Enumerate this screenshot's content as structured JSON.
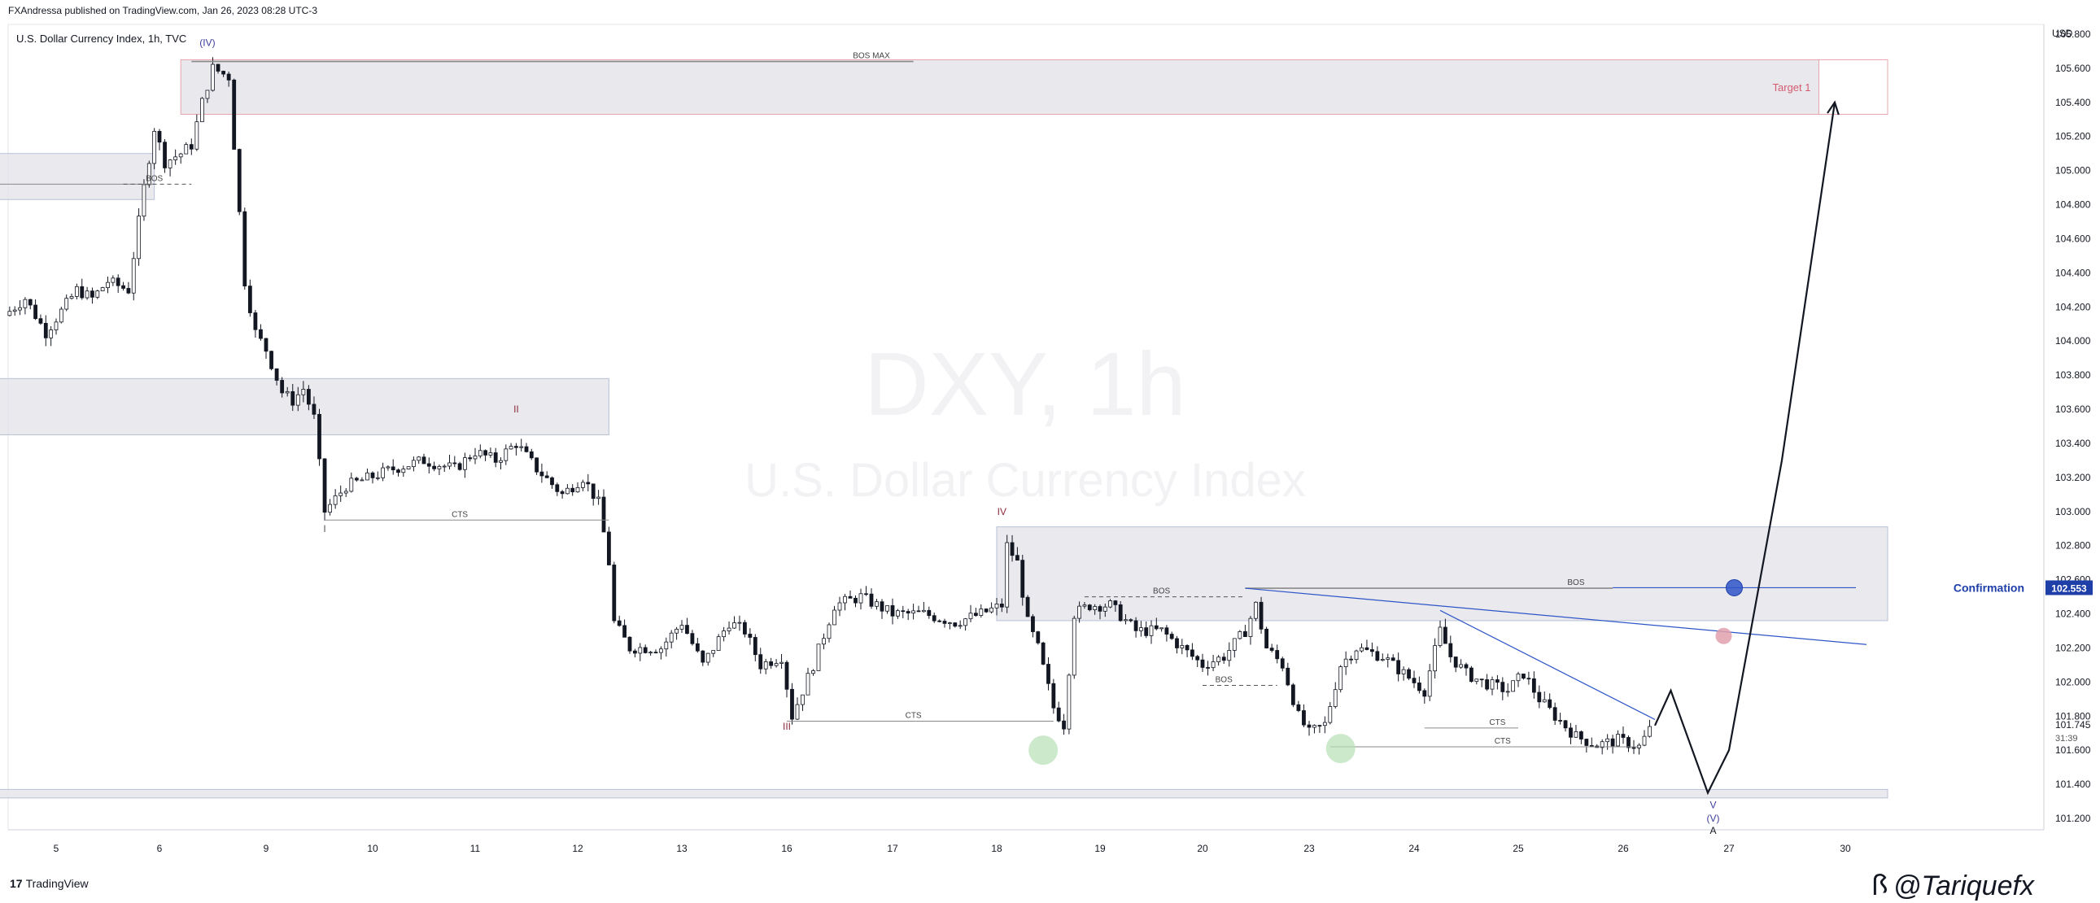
{
  "header": {
    "publisher": "FXAndressa published on TradingView.com, Jan 26, 2023 08:28 UTC-3",
    "instrument": "U.S. Dollar Currency Index, 1h, TVC"
  },
  "watermark": {
    "title": "DXY, 1h",
    "subtitle": "U.S. Dollar Currency Index"
  },
  "footer": {
    "tv_logo_mark": "17",
    "tv_logo_text": "TradingView",
    "handle_glyph": "ꟗ",
    "handle": "@Tariquefx"
  },
  "price_label": {
    "value": "102.553",
    "color": "#1e3fa8"
  },
  "last_price": {
    "value": "101.745",
    "countdown": "31:39"
  },
  "colors": {
    "candle_up": "#ffffff",
    "candle_down": "#131722",
    "zone_fill": "#e4e4ea",
    "target_border": "#e8a4ae",
    "confirm_line": "#2e55c7",
    "axis_text": "#131722"
  },
  "chart_data": {
    "type": "candlestick",
    "currency": "USD",
    "ylim": [
      101.1,
      105.95
    ],
    "y_ticks": [
      "105.800",
      "105.600",
      "105.400",
      "105.200",
      "105.000",
      "104.800",
      "104.600",
      "104.400",
      "104.200",
      "104.000",
      "103.800",
      "103.600",
      "103.400",
      "103.200",
      "103.000",
      "102.800",
      "102.600",
      "102.400",
      "102.200",
      "102.000",
      "101.800",
      "101.600",
      "101.400",
      "101.200"
    ],
    "x_ticks": [
      "5",
      "6",
      "9",
      "10",
      "11",
      "12",
      "13",
      "16",
      "17",
      "18",
      "19",
      "20",
      "23",
      "24",
      "25",
      "26",
      "27",
      "30"
    ],
    "x_tick_index": [
      0,
      1,
      2,
      3,
      4,
      5,
      6,
      7,
      8,
      9,
      10,
      11,
      12,
      13,
      14,
      15,
      16,
      17.1
    ],
    "path_anchors": [
      [
        -0.5,
        104.15
      ],
      [
        -0.3,
        104.25
      ],
      [
        -0.1,
        104.05
      ],
      [
        0.2,
        104.3
      ],
      [
        0.35,
        104.25
      ],
      [
        0.5,
        104.35
      ],
      [
        0.7,
        104.3
      ],
      [
        0.85,
        104.9
      ],
      [
        0.95,
        105.25
      ],
      [
        1.05,
        105.05
      ],
      [
        1.2,
        105.1
      ],
      [
        1.3,
        105.15
      ],
      [
        1.4,
        105.4
      ],
      [
        1.5,
        105.6
      ],
      [
        1.65,
        105.55
      ],
      [
        1.8,
        104.35
      ],
      [
        1.9,
        104.05
      ],
      [
        2.0,
        103.95
      ],
      [
        2.15,
        103.7
      ],
      [
        2.25,
        103.65
      ],
      [
        2.35,
        103.72
      ],
      [
        2.45,
        103.55
      ],
      [
        2.55,
        103.0
      ],
      [
        2.75,
        103.15
      ],
      [
        3.2,
        103.25
      ],
      [
        3.5,
        103.3
      ],
      [
        3.8,
        103.25
      ],
      [
        4.0,
        103.35
      ],
      [
        4.2,
        103.3
      ],
      [
        4.4,
        103.4
      ],
      [
        4.6,
        103.25
      ],
      [
        4.85,
        103.1
      ],
      [
        5.05,
        103.2
      ],
      [
        5.2,
        103.05
      ],
      [
        5.3,
        102.7
      ],
      [
        5.35,
        102.35
      ],
      [
        5.5,
        102.2
      ],
      [
        5.8,
        102.2
      ],
      [
        6.0,
        102.35
      ],
      [
        6.2,
        102.1
      ],
      [
        6.45,
        102.35
      ],
      [
        6.6,
        102.3
      ],
      [
        6.75,
        102.1
      ],
      [
        6.95,
        102.15
      ],
      [
        7.05,
        101.8
      ],
      [
        7.25,
        102.1
      ],
      [
        7.45,
        102.45
      ],
      [
        7.7,
        102.5
      ],
      [
        8.0,
        102.4
      ],
      [
        8.3,
        102.4
      ],
      [
        8.6,
        102.35
      ],
      [
        8.85,
        102.4
      ],
      [
        9.05,
        102.45
      ],
      [
        9.1,
        102.8
      ],
      [
        9.2,
        102.7
      ],
      [
        9.3,
        102.35
      ],
      [
        9.4,
        102.2
      ],
      [
        9.55,
        101.85
      ],
      [
        9.65,
        101.75
      ],
      [
        9.75,
        102.4
      ],
      [
        9.9,
        102.45
      ],
      [
        10.1,
        102.45
      ],
      [
        10.35,
        102.3
      ],
      [
        10.6,
        102.3
      ],
      [
        10.8,
        102.2
      ],
      [
        11.0,
        102.1
      ],
      [
        11.2,
        102.15
      ],
      [
        11.4,
        102.3
      ],
      [
        11.5,
        102.45
      ],
      [
        11.6,
        102.2
      ],
      [
        11.75,
        102.1
      ],
      [
        11.9,
        101.8
      ],
      [
        12.0,
        101.7
      ],
      [
        12.15,
        101.75
      ],
      [
        12.3,
        102.1
      ],
      [
        12.45,
        102.2
      ],
      [
        12.7,
        102.15
      ],
      [
        12.9,
        102.05
      ],
      [
        13.1,
        101.95
      ],
      [
        13.25,
        102.3
      ],
      [
        13.35,
        102.15
      ],
      [
        13.5,
        102.05
      ],
      [
        13.65,
        102.0
      ],
      [
        13.9,
        101.95
      ],
      [
        14.05,
        102.05
      ],
      [
        14.2,
        101.9
      ],
      [
        14.35,
        101.8
      ],
      [
        14.55,
        101.68
      ],
      [
        14.75,
        101.63
      ],
      [
        14.95,
        101.66
      ],
      [
        15.15,
        101.62
      ],
      [
        15.25,
        101.72
      ],
      [
        15.3,
        101.77
      ]
    ],
    "projection": [
      [
        15.3,
        101.745
      ],
      [
        15.45,
        101.95
      ],
      [
        15.8,
        101.35
      ],
      [
        16.0,
        101.6
      ],
      [
        16.5,
        103.3
      ],
      [
        17.0,
        105.4
      ]
    ],
    "zones": [
      {
        "x0": 1.2,
        "x1": 16.85,
        "y0": 105.33,
        "y1": 105.65,
        "style": "target",
        "label": "Target 1"
      },
      {
        "x0": -0.65,
        "x1": 0.95,
        "y0": 104.83,
        "y1": 105.1,
        "style": "zone"
      },
      {
        "x0": -0.65,
        "x1": 5.3,
        "y0": 103.45,
        "y1": 103.78,
        "style": "zone"
      },
      {
        "x0": 9.0,
        "x1": 17.5,
        "y0": 102.36,
        "y1": 102.91,
        "style": "zone"
      },
      {
        "x0": -0.65,
        "x1": 17.5,
        "y0": 101.32,
        "y1": 101.37,
        "style": "zone"
      }
    ],
    "levels": [
      {
        "x0": 1.3,
        "x1": 8.2,
        "y": 105.64,
        "label": "BOS MAX",
        "label_x": 7.8,
        "dashed": false
      },
      {
        "x0": -0.65,
        "x1": 0.95,
        "y": 104.92,
        "label": "",
        "label_x": 0,
        "dashed": false
      },
      {
        "x0": 0.65,
        "x1": 1.3,
        "y": 104.92,
        "label": "BOS",
        "label_x": 0.95,
        "dashed": true
      },
      {
        "x0": 2.55,
        "x1": 5.3,
        "y": 102.95,
        "label": "CTS",
        "label_x": 3.85,
        "dashed": false
      },
      {
        "x0": 9.85,
        "x1": 11.4,
        "y": 102.5,
        "label": "BOS",
        "label_x": 10.6,
        "dashed": true
      },
      {
        "x0": 11.0,
        "x1": 11.7,
        "y": 101.98,
        "label": "BOS",
        "label_x": 11.2,
        "dashed": true
      },
      {
        "x0": 7.0,
        "x1": 9.55,
        "y": 101.77,
        "label": "CTS",
        "label_x": 8.2,
        "dashed": false
      },
      {
        "x0": 13.1,
        "x1": 14.0,
        "y": 101.73,
        "label": "CTS",
        "label_x": 13.8,
        "dashed": false
      },
      {
        "x0": 12.2,
        "x1": 15.15,
        "y": 101.62,
        "label": "CTS",
        "label_x": 13.85,
        "dashed": false
      },
      {
        "x0": 11.4,
        "x1": 14.9,
        "y": 102.55,
        "label": "BOS",
        "label_x": 14.55,
        "dashed": false
      }
    ],
    "trendlines": [
      {
        "x0": 11.4,
        "y0": 102.55,
        "x1": 17.3,
        "y1": 102.22
      },
      {
        "x0": 13.25,
        "y0": 102.42,
        "x1": 15.3,
        "y1": 101.78
      }
    ],
    "confirmation": {
      "x0": 14.9,
      "x1": 17.2,
      "y": 102.553,
      "label": "Confirmation"
    },
    "markers": [
      {
        "x": 16.05,
        "y": 102.553,
        "color": "#2e55c7"
      },
      {
        "x": 15.95,
        "y": 102.27,
        "color": "#e0a0ab"
      },
      {
        "x": 9.45,
        "y": 101.6,
        "color": "#b8e0b6"
      },
      {
        "x": 12.3,
        "y": 101.61,
        "color": "#b8e0b6"
      }
    ],
    "wave_labels": [
      {
        "x": 1.45,
        "y": 105.73,
        "text": "(IV)",
        "color": "#3c3c9c"
      },
      {
        "x": 4.4,
        "y": 103.58,
        "text": "II",
        "color": "#8c2b3c"
      },
      {
        "x": 2.55,
        "y": 102.88,
        "text": "I",
        "color": "#555555"
      },
      {
        "x": 9.05,
        "y": 102.98,
        "text": "IV",
        "color": "#8c2b3c"
      },
      {
        "x": 7.0,
        "y": 101.72,
        "text": "III",
        "color": "#8c2b3c"
      },
      {
        "x": 15.85,
        "y": 101.26,
        "text": "V",
        "color": "#3c3c9c"
      },
      {
        "x": 15.85,
        "y": 101.18,
        "text": "(V)",
        "color": "#3c3c9c"
      },
      {
        "x": 15.85,
        "y": 101.11,
        "text": "A",
        "color": "#131722"
      }
    ]
  }
}
